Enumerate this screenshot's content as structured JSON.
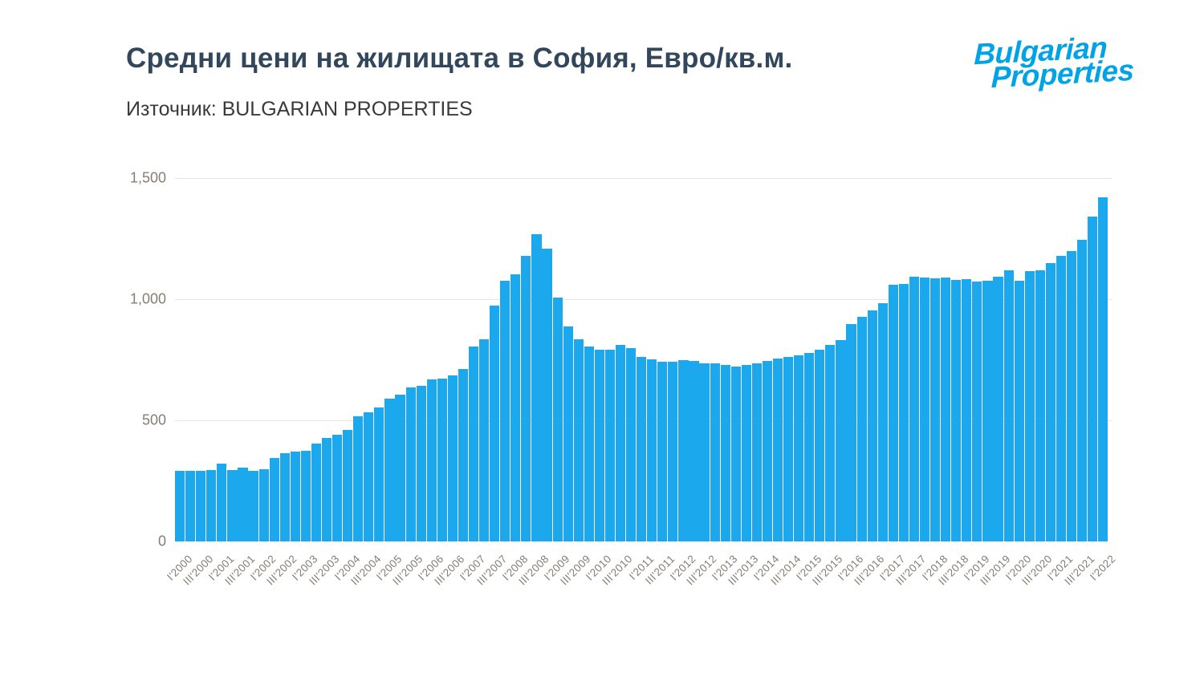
{
  "header": {
    "title": "Средни цени на жилищата в София, Евро/кв.м.",
    "subtitle": "Източник: BULGARIAN PROPERTIES"
  },
  "logo": {
    "line1": "Bulgarian",
    "line2": "Properties"
  },
  "theme": {
    "background": "#FFFFFF",
    "title_color": "#32475C",
    "subtitle_color": "#3A3A3A",
    "axis_label_color": "#867E74",
    "grid_color": "#E7E5E2",
    "bar_color": "#1BA8EC",
    "logo_color": "#00A3E6"
  },
  "chart_data": {
    "type": "bar",
    "title": "Средни цени на жилищата в София, Евро/кв.м.",
    "source": "BULGARIAN PROPERTIES",
    "ylim": [
      0,
      1500
    ],
    "grid": true,
    "legend": false,
    "x_tick_every": 2,
    "y_ticks": [
      {
        "value": 0,
        "label": "0",
        "gridline": false
      },
      {
        "value": 500,
        "label": "500",
        "gridline": true
      },
      {
        "value": 1000,
        "label": "1,000",
        "gridline": true
      },
      {
        "value": 1500,
        "label": "1,500",
        "gridline": true
      }
    ],
    "categories": [
      "I'2000",
      "II'2000",
      "III'2000",
      "IV'2000",
      "I'2001",
      "II'2001",
      "III'2001",
      "IV'2001",
      "I'2002",
      "II'2002",
      "III'2002",
      "IV'2002",
      "I'2003",
      "II'2003",
      "III'2003",
      "IV'2003",
      "I'2004",
      "II'2004",
      "III'2004",
      "IV'2004",
      "I'2005",
      "II'2005",
      "III'2005",
      "IV'2005",
      "I'2006",
      "II'2006",
      "III'2006",
      "IV'2006",
      "I'2007",
      "II'2007",
      "III'2007",
      "IV'2007",
      "I'2008",
      "II'2008",
      "III'2008",
      "IV'2008",
      "I'2009",
      "II'2009",
      "III'2009",
      "IV'2009",
      "I'2010",
      "II'2010",
      "III'2010",
      "IV'2010",
      "I'2011",
      "II'2011",
      "III'2011",
      "IV'2011",
      "I'2012",
      "II'2012",
      "III'2012",
      "IV'2012",
      "I'2013",
      "II'2013",
      "III'2013",
      "IV'2013",
      "I'2014",
      "II'2014",
      "III'2014",
      "IV'2014",
      "I'2015",
      "II'2015",
      "III'2015",
      "IV'2015",
      "I'2016",
      "II'2016",
      "III'2016",
      "IV'2016",
      "I'2017",
      "II'2017",
      "III'2017",
      "IV'2017",
      "I'2018",
      "II'2018",
      "III'2018",
      "IV'2018",
      "I'2019",
      "II'2019",
      "III'2019",
      "IV'2019",
      "I'2020",
      "II'2020",
      "III'2020",
      "IV'2020",
      "I'2021",
      "II'2021",
      "III'2021",
      "IV'2021",
      "I'2022"
    ],
    "values": [
      292,
      292,
      290,
      295,
      322,
      295,
      306,
      292,
      298,
      344,
      364,
      370,
      373,
      403,
      428,
      441,
      461,
      517,
      533,
      554,
      588,
      605,
      637,
      643,
      668,
      673,
      684,
      712,
      806,
      835,
      973,
      1077,
      1103,
      1180,
      1268,
      1210,
      1008,
      888,
      835,
      806,
      791,
      791,
      811,
      798,
      762,
      751,
      742,
      742,
      747,
      745,
      736,
      734,
      728,
      723,
      728,
      734,
      745,
      755,
      762,
      768,
      778,
      790,
      812,
      832,
      897,
      926,
      955,
      982,
      1060,
      1063,
      1093,
      1090,
      1085,
      1090,
      1079,
      1082,
      1074,
      1077,
      1093,
      1118,
      1076,
      1115,
      1118,
      1148,
      1178,
      1200,
      1245,
      1342,
      1421
    ]
  }
}
